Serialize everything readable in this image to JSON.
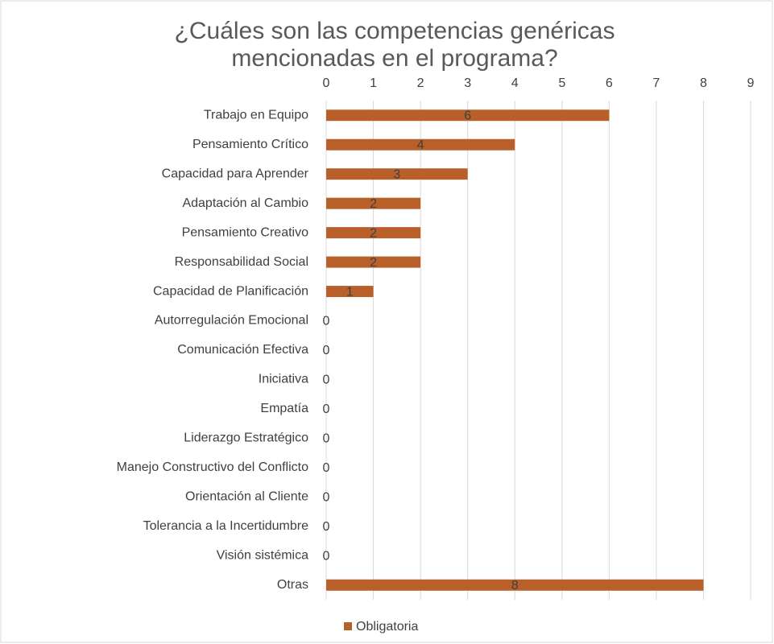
{
  "chart_data": {
    "type": "barh",
    "title": "¿Cuáles son las competencias genéricas mencionadas en el programa?",
    "categories": [
      "Trabajo en Equipo",
      "Pensamiento Crítico",
      "Capacidad para Aprender",
      "Adaptación al Cambio",
      "Pensamiento Creativo",
      "Responsabilidad Social",
      "Capacidad de Planificación",
      "Autorregulación Emocional",
      "Comunicación Efectiva",
      "Iniciativa",
      "Empatía",
      "Liderazgo Estratégico",
      "Manejo Constructivo del Conflicto",
      "Orientación al Cliente",
      "Tolerancia a la Incertidumbre",
      "Visión sistémica",
      "Otras"
    ],
    "series": [
      {
        "name": "Obligatoria",
        "color": "#b9602a",
        "values": [
          6,
          4,
          3,
          2,
          2,
          2,
          1,
          0,
          0,
          0,
          0,
          0,
          0,
          0,
          0,
          0,
          8
        ]
      }
    ],
    "xlim": [
      0,
      9
    ],
    "xticks": [
      0,
      1,
      2,
      3,
      4,
      5,
      6,
      7,
      8,
      9
    ],
    "grid": true,
    "legend": "bottom"
  }
}
